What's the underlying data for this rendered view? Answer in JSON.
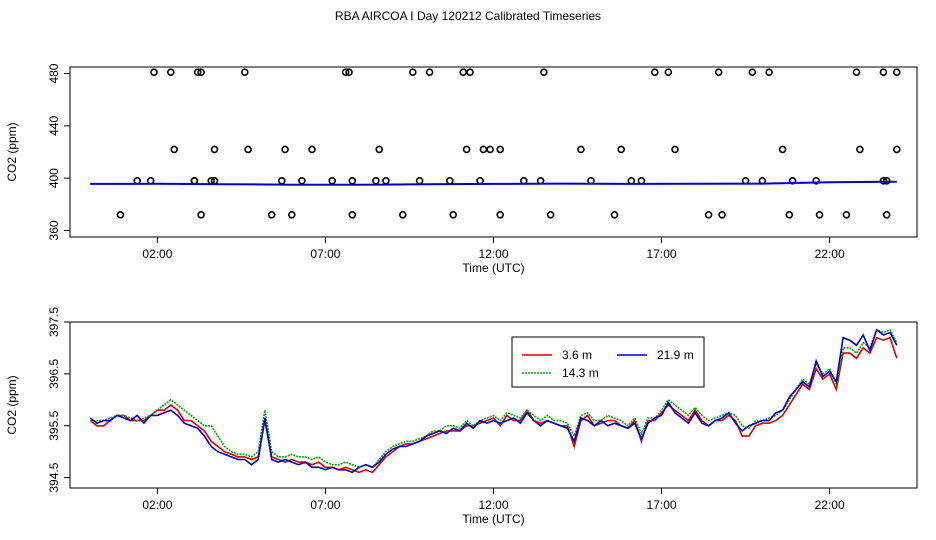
{
  "figure": {
    "title": "RBA AIRCOA I  Day 120212  Calibrated Timeseries"
  },
  "chart_data": [
    {
      "type": "scatter",
      "xlabel": "Time (UTC)",
      "ylabel": "CO2 (ppm)",
      "xlim": [
        -0.6,
        24.6
      ],
      "ylim": [
        355,
        485
      ],
      "xticks": [
        2,
        7,
        12,
        17,
        22
      ],
      "xtick_labels": [
        "02:00",
        "07:00",
        "12:00",
        "17:00",
        "22:00"
      ],
      "yticks": [
        360,
        400,
        440,
        480
      ],
      "ytick_labels": [
        "360",
        "400",
        "440",
        "480"
      ],
      "series": [
        {
          "color": "#000000",
          "marker": "open-circle",
          "x": [
            0.9,
            1.4,
            1.9,
            2.5,
            3.1,
            3.2,
            3.3,
            4.6,
            5.4,
            7.2,
            8.6,
            9.3,
            9.6,
            10.1,
            10.7,
            11.2,
            11.6,
            12.2,
            13.4,
            14.9,
            17.4,
            18.8,
            19.5,
            20.6,
            22.5,
            23.6,
            23.7,
            2.4,
            5.7,
            7.7,
            8.8,
            11.3,
            13.5,
            14.6,
            16.8,
            18.4,
            20.9,
            21.7,
            22.9,
            24.0,
            1.8,
            3.7,
            6.0,
            7.8,
            9.8,
            10.8,
            12.9,
            13.7,
            15.6,
            16.1,
            18.7,
            20.2,
            20.8,
            22.8,
            24.0,
            3.1,
            3.7,
            4.7,
            6.6,
            7.8,
            11.9,
            15.8,
            19.7,
            3.3,
            3.6,
            5.8,
            6.3,
            7.6,
            8.5,
            11.1,
            11.7,
            12.2,
            16.4,
            17.2,
            20.0,
            21.6,
            23.6,
            23.7
          ],
          "y": [
            372,
            398,
            481,
            422,
            398,
            481,
            372,
            481,
            372,
            398,
            422,
            372,
            481,
            481,
            398,
            422,
            398,
            372,
            398,
            398,
            422,
            372,
            398,
            422,
            372,
            398,
            372,
            481,
            398,
            481,
            398,
            481,
            481,
            422,
            481,
            372,
            398,
            372,
            422,
            422,
            398,
            398,
            372,
            398,
            398,
            372,
            398,
            372,
            372,
            398,
            481,
            481,
            372,
            481,
            481,
            398,
            422,
            422,
            422,
            372,
            422,
            422,
            481,
            481,
            398,
            422,
            398,
            481,
            398,
            481,
            422,
            422,
            398,
            481,
            398,
            398,
            481,
            398
          ]
        },
        {
          "color": "#0000cc",
          "marker": "line",
          "x": [
            0.0,
            2.0,
            4.0,
            6.0,
            8.0,
            10.0,
            12.0,
            14.0,
            16.0,
            18.0,
            20.0,
            22.0,
            24.0
          ],
          "y": [
            395.6,
            395.7,
            395.4,
            395.0,
            394.9,
            395.3,
            395.6,
            395.8,
            395.6,
            395.7,
            395.8,
            396.8,
            397.3
          ]
        }
      ]
    },
    {
      "type": "line",
      "xlabel": "Time (UTC)",
      "ylabel": "CO2 (ppm)",
      "xlim": [
        -0.6,
        24.6
      ],
      "ylim": [
        394.3,
        397.5
      ],
      "xticks": [
        2,
        7,
        12,
        17,
        22
      ],
      "xtick_labels": [
        "02:00",
        "07:00",
        "12:00",
        "17:00",
        "22:00"
      ],
      "yticks": [
        394.5,
        395.5,
        396.5,
        397.5
      ],
      "ytick_labels": [
        "394.5",
        "395.5",
        "396.5",
        "397.5"
      ],
      "grid": false,
      "legend_position": "top-right",
      "x": [
        0.0,
        0.2,
        0.4,
        0.6,
        0.8,
        1.0,
        1.2,
        1.4,
        1.6,
        1.8,
        2.0,
        2.2,
        2.4,
        2.6,
        2.8,
        3.0,
        3.2,
        3.4,
        3.6,
        3.8,
        4.0,
        4.2,
        4.4,
        4.6,
        4.8,
        5.0,
        5.2,
        5.4,
        5.6,
        5.8,
        6.0,
        6.2,
        6.4,
        6.6,
        6.8,
        7.0,
        7.2,
        7.4,
        7.6,
        7.8,
        8.0,
        8.2,
        8.4,
        8.6,
        8.8,
        9.0,
        9.2,
        9.4,
        9.6,
        9.8,
        10.0,
        10.2,
        10.4,
        10.6,
        10.8,
        11.0,
        11.2,
        11.4,
        11.6,
        11.8,
        12.0,
        12.2,
        12.4,
        12.6,
        12.8,
        13.0,
        13.2,
        13.4,
        13.6,
        13.8,
        14.0,
        14.2,
        14.4,
        14.6,
        14.8,
        15.0,
        15.2,
        15.4,
        15.6,
        15.8,
        16.0,
        16.2,
        16.4,
        16.6,
        16.8,
        17.0,
        17.2,
        17.4,
        17.6,
        17.8,
        18.0,
        18.2,
        18.4,
        18.6,
        18.8,
        19.0,
        19.2,
        19.4,
        19.6,
        19.8,
        20.0,
        20.2,
        20.4,
        20.6,
        20.8,
        21.0,
        21.2,
        21.4,
        21.6,
        21.8,
        22.0,
        22.2,
        22.4,
        22.6,
        22.8,
        23.0,
        23.2,
        23.4,
        23.6,
        23.8,
        24.0
      ],
      "series": [
        {
          "name": "3.6 m",
          "color": "#dd0000",
          "dash": "solid",
          "values": [
            395.6,
            395.5,
            395.5,
            395.6,
            395.7,
            395.7,
            395.6,
            395.6,
            395.6,
            395.7,
            395.8,
            395.8,
            395.9,
            395.8,
            395.6,
            395.6,
            395.5,
            395.4,
            395.2,
            395.1,
            395.0,
            394.95,
            394.9,
            394.9,
            394.85,
            394.9,
            395.6,
            394.9,
            394.85,
            394.8,
            394.85,
            394.8,
            394.8,
            394.75,
            394.8,
            394.7,
            394.7,
            394.65,
            394.7,
            394.65,
            394.6,
            394.65,
            394.6,
            394.75,
            394.9,
            395.0,
            395.1,
            395.15,
            395.15,
            395.2,
            395.25,
            395.3,
            395.35,
            395.4,
            395.4,
            395.4,
            395.5,
            395.5,
            395.55,
            395.6,
            395.65,
            395.5,
            395.7,
            395.6,
            395.6,
            395.8,
            395.6,
            395.55,
            395.6,
            395.55,
            395.5,
            395.5,
            395.1,
            395.6,
            395.7,
            395.5,
            395.55,
            395.6,
            395.6,
            395.5,
            395.45,
            395.6,
            395.2,
            395.6,
            395.6,
            395.75,
            395.9,
            395.8,
            395.7,
            395.6,
            395.8,
            395.6,
            395.5,
            395.6,
            395.6,
            395.7,
            395.6,
            395.3,
            395.3,
            395.5,
            395.55,
            395.55,
            395.6,
            395.7,
            395.9,
            396.1,
            396.3,
            396.2,
            396.6,
            396.4,
            396.5,
            396.2,
            396.9,
            396.9,
            396.8,
            397.0,
            396.9,
            397.2,
            397.15,
            397.2,
            396.8
          ]
        },
        {
          "name": "14.3 m",
          "color": "#00aa00",
          "dash": "dotted",
          "values": [
            395.6,
            395.6,
            395.6,
            395.65,
            395.7,
            395.7,
            395.65,
            395.6,
            395.65,
            395.7,
            395.8,
            395.9,
            396.0,
            395.9,
            395.8,
            395.7,
            395.6,
            395.5,
            395.5,
            395.3,
            395.1,
            395.0,
            394.95,
            394.95,
            394.9,
            395.0,
            395.8,
            395.0,
            394.9,
            394.9,
            394.95,
            394.9,
            394.9,
            394.85,
            394.9,
            394.8,
            394.75,
            394.75,
            394.8,
            394.75,
            394.7,
            394.75,
            394.7,
            394.85,
            395.0,
            395.1,
            395.15,
            395.2,
            395.2,
            395.25,
            395.3,
            395.4,
            395.4,
            395.5,
            395.5,
            395.45,
            395.6,
            395.5,
            395.6,
            395.65,
            395.7,
            395.6,
            395.75,
            395.7,
            395.65,
            395.8,
            395.7,
            395.6,
            395.7,
            395.6,
            395.6,
            395.55,
            395.3,
            395.7,
            395.75,
            395.6,
            395.6,
            395.7,
            395.65,
            395.6,
            395.5,
            395.65,
            395.35,
            395.65,
            395.65,
            395.8,
            396.0,
            395.9,
            395.8,
            395.7,
            395.85,
            395.7,
            395.6,
            395.65,
            395.7,
            395.75,
            395.7,
            395.5,
            395.45,
            395.6,
            395.6,
            395.65,
            395.7,
            395.8,
            396.0,
            396.2,
            396.4,
            396.3,
            396.7,
            396.5,
            396.6,
            396.3,
            397.0,
            397.0,
            396.9,
            397.1,
            397.0,
            397.35,
            397.3,
            397.35,
            397.1
          ]
        },
        {
          "name": "21.9 m",
          "color": "#0000cc",
          "dash": "solid",
          "values": [
            395.65,
            395.55,
            395.6,
            395.6,
            395.7,
            395.65,
            395.6,
            395.7,
            395.55,
            395.7,
            395.7,
            395.75,
            395.8,
            395.7,
            395.55,
            395.5,
            395.45,
            395.3,
            395.1,
            395.0,
            394.95,
            394.9,
            394.85,
            394.85,
            394.75,
            394.85,
            395.65,
            394.85,
            394.8,
            394.85,
            394.8,
            394.75,
            394.8,
            394.7,
            394.7,
            394.65,
            394.7,
            394.65,
            394.65,
            394.6,
            394.7,
            394.75,
            394.7,
            394.8,
            394.95,
            395.05,
            395.1,
            395.1,
            395.15,
            395.2,
            395.3,
            395.35,
            395.4,
            395.35,
            395.45,
            395.4,
            395.55,
            395.45,
            395.6,
            395.55,
            395.6,
            395.55,
            395.6,
            395.65,
            395.55,
            395.75,
            395.6,
            395.5,
            395.6,
            395.55,
            395.5,
            395.45,
            395.2,
            395.65,
            395.6,
            395.5,
            395.6,
            395.5,
            395.55,
            395.5,
            395.45,
            395.55,
            395.25,
            395.55,
            395.65,
            395.7,
            395.95,
            395.75,
            395.65,
            395.55,
            395.75,
            395.55,
            395.5,
            395.6,
            395.65,
            395.75,
            395.55,
            395.4,
            395.5,
            395.55,
            395.6,
            395.6,
            395.75,
            395.8,
            396.05,
            396.2,
            396.35,
            396.25,
            396.75,
            396.45,
            396.55,
            396.35,
            397.2,
            397.15,
            397.05,
            397.25,
            396.95,
            397.35,
            397.25,
            397.3,
            397.05
          ]
        }
      ]
    }
  ]
}
